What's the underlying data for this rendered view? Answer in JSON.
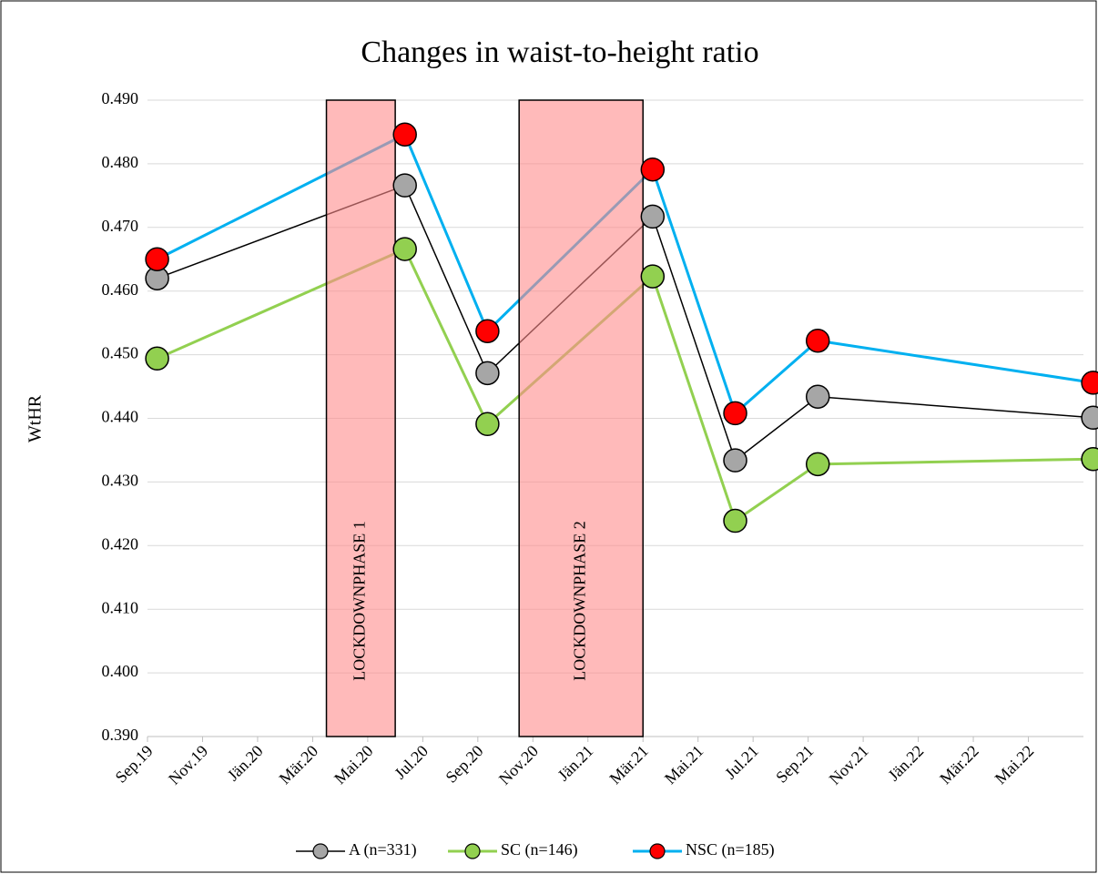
{
  "chart_data": {
    "type": "line",
    "title": "Changes in waist-to-height ratio",
    "y_label": "WtHR",
    "x": [
      "2019-09",
      "2020-06",
      "2020-09",
      "2021-03",
      "2021-06",
      "2021-09",
      "2022-07"
    ],
    "series": [
      {
        "name": "A (n=331)",
        "color": "#000000",
        "marker_color": "#a6a6a6",
        "values": [
          0.462,
          0.4766,
          0.4471,
          0.4717,
          0.4334,
          0.4434,
          0.4401
        ]
      },
      {
        "name": "SC (n=146)",
        "color": "#92d050",
        "marker_color": "#92d050",
        "values": [
          0.4494,
          0.4666,
          0.4391,
          0.4623,
          0.4239,
          0.4328,
          0.4336
        ]
      },
      {
        "name": "NSC (n=185)",
        "color": "#00b0f0",
        "marker_color": "#ff0000",
        "values": [
          0.465,
          0.4846,
          0.4537,
          0.4791,
          0.4408,
          0.4522,
          0.4456
        ]
      }
    ],
    "xlim": [
      "2019-09",
      "2022-07"
    ],
    "xticks": [
      {
        "value": "2019-09",
        "label": "Sep.19"
      },
      {
        "value": "2019-11",
        "label": "Nov.19"
      },
      {
        "value": "2020-01",
        "label": "Jän.20"
      },
      {
        "value": "2020-03",
        "label": "Mär.20"
      },
      {
        "value": "2020-05",
        "label": "Mai.20"
      },
      {
        "value": "2020-07",
        "label": "Jul.20"
      },
      {
        "value": "2020-09",
        "label": "Sep.20"
      },
      {
        "value": "2020-11",
        "label": "Nov.20"
      },
      {
        "value": "2021-01",
        "label": "Jän.21"
      },
      {
        "value": "2021-03",
        "label": "Mär.21"
      },
      {
        "value": "2021-05",
        "label": "Mai.21"
      },
      {
        "value": "2021-07",
        "label": "Jul.21"
      },
      {
        "value": "2021-09",
        "label": "Sep.21"
      },
      {
        "value": "2021-11",
        "label": "Nov.21"
      },
      {
        "value": "2022-01",
        "label": "Jän.22"
      },
      {
        "value": "2022-03",
        "label": "Mär.22"
      },
      {
        "value": "2022-05",
        "label": "Mai.22"
      }
    ],
    "ylim": [
      0.39,
      0.49
    ],
    "yticks": [
      {
        "value": 0.39,
        "label": "0.390"
      },
      {
        "value": 0.4,
        "label": "0.400"
      },
      {
        "value": 0.41,
        "label": "0.410"
      },
      {
        "value": 0.42,
        "label": "0.420"
      },
      {
        "value": 0.43,
        "label": "0.430"
      },
      {
        "value": 0.44,
        "label": "0.440"
      },
      {
        "value": 0.45,
        "label": "0.450"
      },
      {
        "value": 0.46,
        "label": "0.460"
      },
      {
        "value": 0.47,
        "label": "0.470"
      },
      {
        "value": 0.48,
        "label": "0.480"
      },
      {
        "value": 0.49,
        "label": "0.490"
      }
    ],
    "grid": true,
    "legend": "bottom",
    "annotations": [
      {
        "label": "LOCKDOWNPHASE 1",
        "start": "2020-03",
        "end": "2020-05"
      },
      {
        "label": "LOCKDOWNPHASE 2",
        "start": "2020-10",
        "end": "2021-02"
      }
    ]
  }
}
